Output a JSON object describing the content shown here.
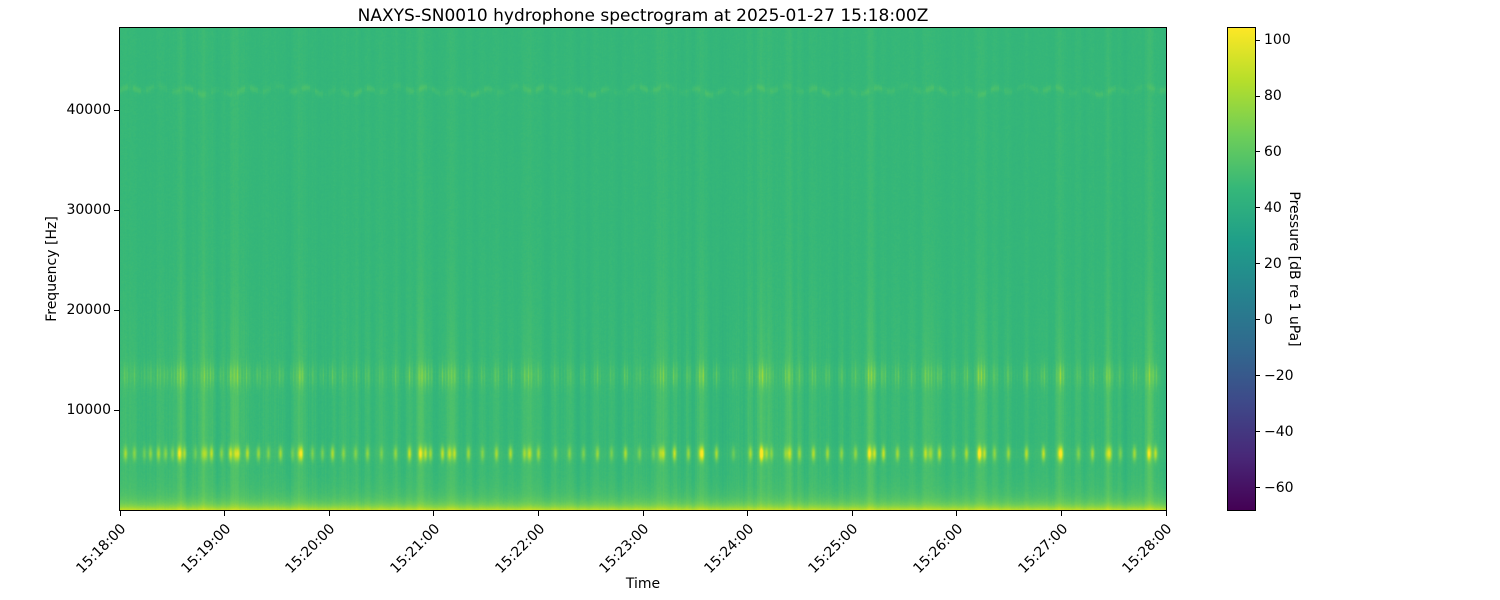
{
  "figure": {
    "title": "NAXYS-SN0010 hydrophone spectrogram at 2025-01-27 15:18:00Z",
    "background": "#ffffff"
  },
  "axes": {
    "xlabel": "Time",
    "ylabel": "Frequency [Hz]",
    "x_tick_labels": [
      "15:18:00",
      "15:19:00",
      "15:20:00",
      "15:21:00",
      "15:22:00",
      "15:23:00",
      "15:24:00",
      "15:25:00",
      "15:26:00",
      "15:27:00",
      "15:28:00"
    ],
    "x_tick_times_s": [
      0,
      60,
      120,
      180,
      240,
      300,
      360,
      420,
      480,
      540,
      600
    ],
    "y_tick_labels": [
      "10000",
      "20000",
      "30000",
      "40000"
    ],
    "y_tick_values_hz": [
      10000,
      20000,
      30000,
      40000
    ],
    "x_range_s": [
      0,
      600
    ],
    "y_range_hz": [
      0,
      48200
    ]
  },
  "colorbar": {
    "label": "Pressure [dB re 1 uPa]",
    "tick_labels": [
      "100",
      "80",
      "60",
      "40",
      "20",
      "0",
      "−20",
      "−40",
      "−60"
    ],
    "tick_values": [
      100,
      80,
      60,
      40,
      20,
      0,
      -20,
      -40,
      -60
    ],
    "vmin": -67.9,
    "vmax": 104.3,
    "colormap": "viridis",
    "gradient_stops": [
      "#440154",
      "#482878",
      "#3e4989",
      "#31688e",
      "#26828e",
      "#1f9e89",
      "#35b779",
      "#6ece58",
      "#b5de2b",
      "#fde725"
    ]
  },
  "chart_data": {
    "type": "heatmap",
    "subtype": "spectrogram",
    "title": "NAXYS-SN0010 hydrophone spectrogram at 2025-01-27 15:18:00Z",
    "xlabel": "Time",
    "ylabel": "Frequency [Hz]",
    "zlabel": "Pressure [dB re 1 uPa]",
    "time_start": "15:18:00",
    "time_end": "15:28:00",
    "time_span_s": 600,
    "freq_range_hz": [
      0,
      48200
    ],
    "pressure_db_range": [
      -68,
      104
    ],
    "background_level_db": 46,
    "base_color": "#2db27e",
    "bright_transient_color": "#c0df28",
    "features": [
      {
        "name": "broadband-background",
        "freq_hz": [
          0,
          48200
        ],
        "level_db": 46,
        "pattern": "uniform green field with faint vertical striping"
      },
      {
        "name": "low-frequency-band",
        "freq_hz": [
          0,
          2500
        ],
        "peak_level_db": 84,
        "pattern": "persistent bright band hugging the bottom edge, fading upward"
      },
      {
        "name": "click-band",
        "freq_hz": [
          4800,
          6400
        ],
        "peak_level_db": 88,
        "pattern": "row of short bright impulsive dashes at click times"
      },
      {
        "name": "mid-band",
        "freq_hz": [
          12000,
          15000
        ],
        "peak_level_db": 66,
        "pattern": "quasi-continuous dashed ridge, brighter at click times"
      },
      {
        "name": "narrowband-tone",
        "freq_hz": [
          41500,
          42500
        ],
        "level_db": 53,
        "pattern": "faint wavy dashed horizontal line"
      },
      {
        "name": "vertical-transients",
        "freq_hz": [
          0,
          48200
        ],
        "boost_db": 5,
        "pattern": "full-height lighter streaks at click times"
      }
    ],
    "click_times_s": [
      3,
      8,
      14,
      17,
      22,
      26,
      30,
      34,
      37,
      43,
      47,
      52,
      58,
      63,
      68,
      73,
      79,
      85,
      92,
      99,
      104,
      110,
      116,
      122,
      128,
      135,
      142,
      150,
      158,
      166,
      172,
      175,
      178,
      185,
      192,
      200,
      208,
      216,
      224,
      232,
      240,
      250,
      258,
      266,
      274,
      282,
      290,
      298,
      306,
      312,
      318,
      326,
      334,
      342,
      352,
      362,
      368,
      371,
      374,
      382,
      390,
      398,
      406,
      414,
      422,
      430,
      433,
      438,
      446,
      454,
      462,
      470,
      478,
      486,
      493,
      496,
      502,
      510,
      520,
      530,
      540,
      550,
      558,
      566,
      574,
      582,
      590,
      594
    ],
    "strong_event_times_s": [
      34,
      49,
      66,
      103,
      172,
      189,
      235,
      310,
      333,
      368,
      384,
      430,
      465,
      493,
      539,
      568,
      591
    ]
  }
}
